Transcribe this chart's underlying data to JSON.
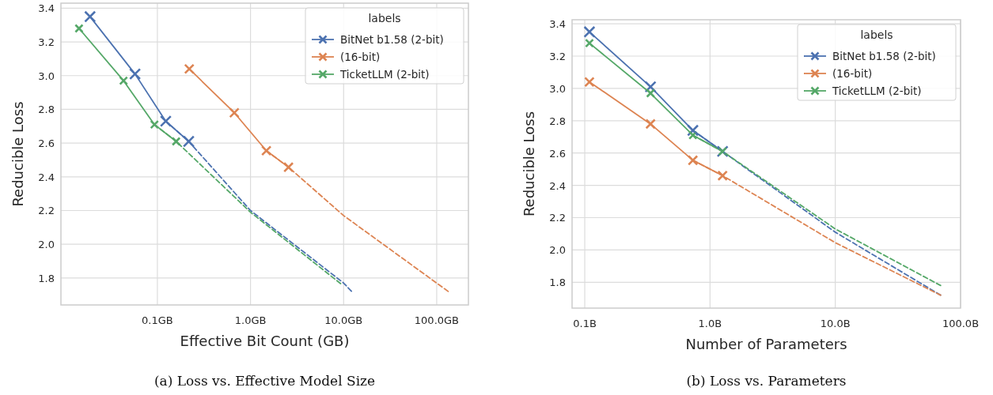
{
  "chart_data": [
    {
      "type": "line",
      "title": "(a) Loss vs. Effective Model Size",
      "xlabel": "Effective Bit Count (GB)",
      "ylabel": "Reducible Loss",
      "legend_title": "labels",
      "legend": "top right",
      "grid": true,
      "marker": "cross",
      "line_style": "solid",
      "log": "x",
      "xlim": [
        0.0092,
        219
      ],
      "xticks": [
        {
          "value": 0.1,
          "label": "0.1GB"
        },
        {
          "value": 1,
          "label": "1.0GB"
        },
        {
          "value": 10,
          "label": "10.0GB"
        },
        {
          "value": 100,
          "label": "100.0GB"
        }
      ],
      "ylim": [
        1.64,
        3.43
      ],
      "yticks": [
        {
          "value": 1.8,
          "label": "1.8"
        },
        {
          "value": 2,
          "label": "2.0"
        },
        {
          "value": 2.2,
          "label": "2.2"
        },
        {
          "value": 2.4,
          "label": "2.4"
        },
        {
          "value": 2.6,
          "label": "2.6"
        },
        {
          "value": 2.8,
          "label": "2.8"
        },
        {
          "value": 3,
          "label": "3.0"
        },
        {
          "value": 3.2,
          "label": "3.2"
        },
        {
          "value": 3.4,
          "label": "3.4"
        }
      ],
      "series": [
        {
          "name": "BitNet b1.58 (2-bit)",
          "color": "#4c72b0",
          "x": [
            0.0189,
            0.0575,
            0.123,
            0.217
          ],
          "values": [
            3.35,
            3.01,
            2.73,
            2.61
          ]
        },
        {
          "name": "(16-bit)",
          "color": "#dd8452",
          "x": [
            0.22,
            0.67,
            1.48,
            2.56
          ],
          "values": [
            3.04,
            2.78,
            2.555,
            2.457
          ]
        },
        {
          "name": "TicketLLM (2-bit)",
          "color": "#55a868",
          "x": [
            0.0144,
            0.0433,
            0.093,
            0.159
          ],
          "values": [
            3.28,
            2.97,
            2.71,
            2.61
          ]
        },
        {
          "type": "line",
          "line_style": "dashed",
          "marker": "none",
          "color": "#4c72b0",
          "x": [
            0.123,
            0.217,
            1,
            10,
            12.2
          ],
          "values": [
            2.73,
            2.61,
            2.2,
            1.77,
            1.72
          ]
        },
        {
          "type": "line",
          "line_style": "dashed",
          "marker": "none",
          "color": "#dd8452",
          "x": [
            1.48,
            2.56,
            10,
            133
          ],
          "values": [
            2.555,
            2.457,
            2.17,
            1.72
          ]
        },
        {
          "type": "line",
          "line_style": "dashed",
          "marker": "none",
          "color": "#55a868",
          "x": [
            0.093,
            0.159,
            1,
            9.35
          ],
          "values": [
            2.71,
            2.61,
            2.19,
            1.765
          ]
        }
      ]
    },
    {
      "type": "line",
      "title": "(b) Loss vs. Parameters",
      "xlabel": "Number of Parameters",
      "ylabel": "Reducible Loss",
      "legend_title": "labels",
      "legend": "top right",
      "grid": true,
      "marker": "cross",
      "line_style": "solid",
      "log": "x",
      "xlim": [
        0.0792,
        100
      ],
      "xticks": [
        {
          "value": 0.1,
          "label": "0.1B"
        },
        {
          "value": 1,
          "label": "1.0B"
        },
        {
          "value": 10,
          "label": "10.0B"
        },
        {
          "value": 100,
          "label": "100.0B"
        }
      ],
      "ylim": [
        1.64,
        3.425
      ],
      "yticks": [
        {
          "value": 1.8,
          "label": "1.8"
        },
        {
          "value": 2,
          "label": "2.0"
        },
        {
          "value": 2.2,
          "label": "2.2"
        },
        {
          "value": 2.4,
          "label": "2.4"
        },
        {
          "value": 2.6,
          "label": "2.6"
        },
        {
          "value": 2.8,
          "label": "2.8"
        },
        {
          "value": 3,
          "label": "3.0"
        },
        {
          "value": 3.2,
          "label": "3.2"
        },
        {
          "value": 3.4,
          "label": "3.4"
        }
      ],
      "series": [
        {
          "name": "BitNet b1.58 (2-bit)",
          "color": "#4c72b0",
          "x": [
            0.109,
            0.335,
            0.73,
            1.26
          ],
          "values": [
            3.35,
            3.01,
            2.74,
            2.61
          ]
        },
        {
          "name": "(16-bit)",
          "color": "#dd8452",
          "x": [
            0.109,
            0.335,
            0.73,
            1.26
          ],
          "values": [
            3.04,
            2.78,
            2.555,
            2.46
          ]
        },
        {
          "name": "TicketLLM (2-bit)",
          "color": "#55a868",
          "x": [
            0.109,
            0.335,
            0.73,
            1.26
          ],
          "values": [
            3.28,
            2.97,
            2.71,
            2.61
          ]
        },
        {
          "type": "line",
          "line_style": "dashed",
          "marker": "none",
          "color": "#4c72b0",
          "x": [
            0.73,
            1.26,
            10,
            69.3
          ],
          "values": [
            2.74,
            2.61,
            2.11,
            1.72
          ]
        },
        {
          "type": "line",
          "line_style": "dashed",
          "marker": "none",
          "color": "#dd8452",
          "x": [
            0.73,
            1.26,
            10,
            69.3
          ],
          "values": [
            2.555,
            2.46,
            2.045,
            1.72
          ]
        },
        {
          "type": "line",
          "line_style": "dashed",
          "marker": "none",
          "color": "#55a868",
          "x": [
            0.73,
            1.26,
            10,
            69.3
          ],
          "values": [
            2.71,
            2.61,
            2.13,
            1.78
          ]
        }
      ]
    }
  ]
}
